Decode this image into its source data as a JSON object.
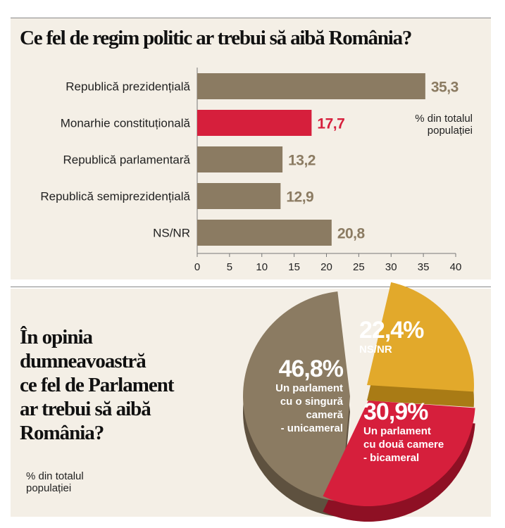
{
  "chart_data": [
    {
      "type": "bar",
      "orientation": "horizontal",
      "title": "Ce fel de regim politic ar trebui să aibă România?",
      "note_line1": "% din  totalul",
      "note_line2": "populației",
      "categories": [
        "Republică prezidențială",
        "Monarhie constituțională",
        "Republică parlamentară",
        "Republică semiprezidențială",
        "NS/NR"
      ],
      "values": [
        35.3,
        17.7,
        13.2,
        12.9,
        20.8
      ],
      "value_labels": [
        "35,3",
        "17,7",
        "13,2",
        "12,9",
        "20,8"
      ],
      "highlight_index": 1,
      "xlim": [
        0,
        40
      ],
      "xticks": [
        "0",
        "5",
        "10",
        "15",
        "20",
        "25",
        "30",
        "35",
        "40"
      ],
      "colors": {
        "bar": "#8b7b62",
        "highlight": "#d61f3c",
        "label": "#8b7b62",
        "highlight_label": "#d61f3c"
      }
    },
    {
      "type": "pie",
      "title_lines": [
        "În opinia",
        "dumneavoastră",
        "ce fel de Parlament",
        "ar trebui să aibă",
        "România?"
      ],
      "note_line1": "% din  totalul",
      "note_line2": "populației",
      "slices": [
        {
          "value": 46.8,
          "pct_label": "46,8%",
          "label_lines": [
            "Un parlament",
            "cu o singură",
            "cameră",
            "- unicameral"
          ],
          "color": "#8b7b62",
          "side": "#5e513f"
        },
        {
          "value": 22.4,
          "pct_label": "22,4%",
          "label_lines": [
            "NS/NR"
          ],
          "color": "#e2a92b",
          "side": "#a97b15"
        },
        {
          "value": 30.9,
          "pct_label": "30,9%",
          "label_lines": [
            "Un parlament",
            "cu două camere",
            "- bicameral"
          ],
          "color": "#d61f3c",
          "side": "#8e1024"
        }
      ]
    }
  ]
}
